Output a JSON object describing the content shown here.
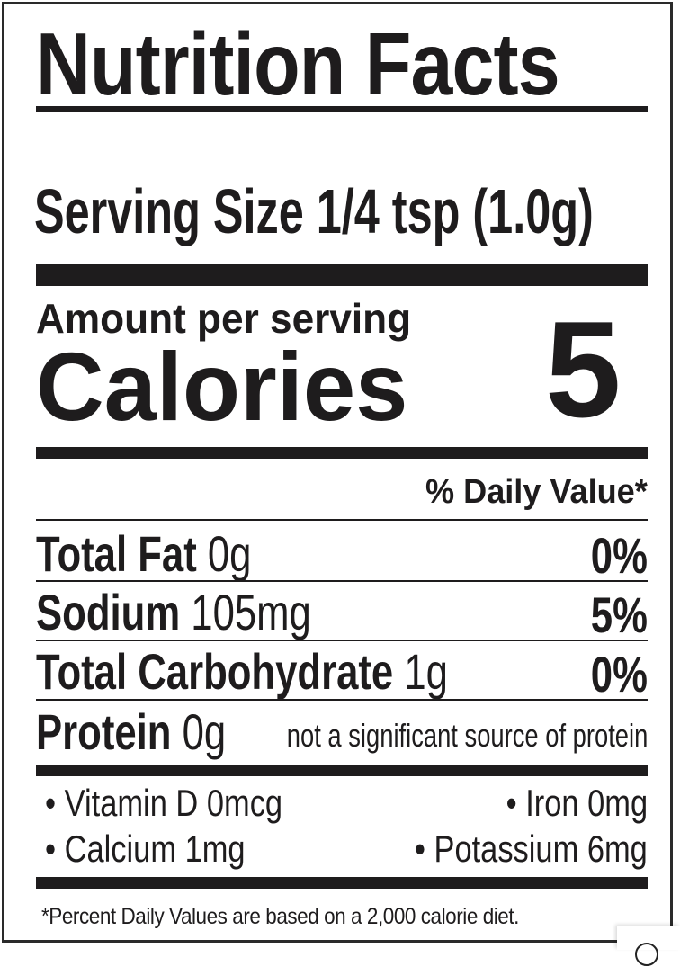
{
  "title": "Nutrition Facts",
  "serving_size": "Serving Size 1/4 tsp (1.0g)",
  "amount_per_serving": "Amount per serving",
  "calories_label": "Calories",
  "calories_value": "5",
  "daily_value_header": "% Daily Value*",
  "nutrients": [
    {
      "name": "Total Fat",
      "amount": "0g",
      "dv": "0%"
    },
    {
      "name": "Sodium",
      "amount": "105mg",
      "dv": "5%"
    },
    {
      "name": "Total Carbohydrate",
      "amount": "1g",
      "dv": "0%"
    }
  ],
  "protein": {
    "name": "Protein",
    "amount": "0g",
    "note": "not a significant source of protein"
  },
  "micronutrients": [
    {
      "text": "• Vitamin D 0mcg"
    },
    {
      "text": "• Iron 0mg"
    },
    {
      "text": "• Calcium 1mg"
    },
    {
      "text": "• Potassium 6mg"
    }
  ],
  "footnote": "*Percent Daily Values are based on a 2,000 calorie diet."
}
